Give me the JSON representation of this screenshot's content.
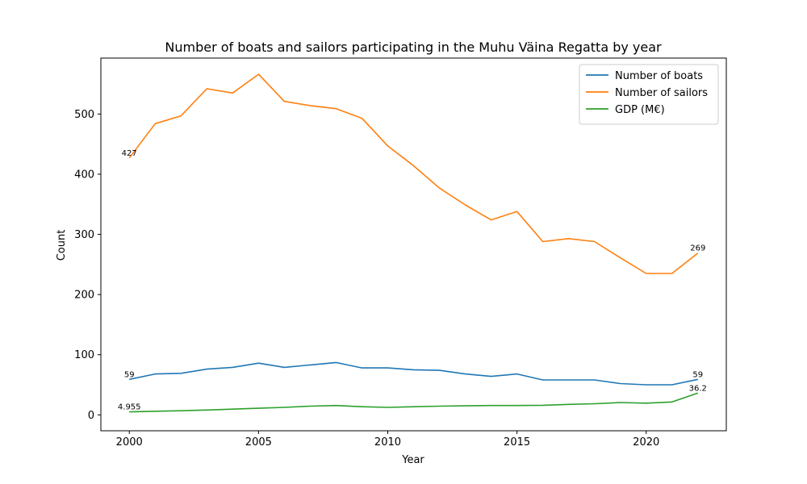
{
  "chart_data": {
    "type": "line",
    "title": "Number of boats and sailors participating in the Muhu Väina Regatta by year",
    "xlabel": "Year",
    "ylabel": "Count",
    "x": [
      2000,
      2001,
      2002,
      2003,
      2004,
      2005,
      2006,
      2007,
      2008,
      2009,
      2010,
      2011,
      2012,
      2013,
      2014,
      2015,
      2016,
      2017,
      2018,
      2019,
      2020,
      2021,
      2022
    ],
    "xlim": [
      1998.9,
      2023.1
    ],
    "ylim": [
      -26.4,
      593
    ],
    "xticks": [
      2000,
      2005,
      2010,
      2015,
      2020
    ],
    "yticks": [
      0,
      100,
      200,
      300,
      400,
      500
    ],
    "grid": false,
    "legend_position": "top-right",
    "series": [
      {
        "name": "Number of boats",
        "color": "#1f77b4",
        "values": [
          59,
          68,
          69,
          76,
          79,
          86,
          79,
          83,
          87,
          78,
          78,
          75,
          74,
          68,
          64,
          68,
          58,
          58,
          58,
          52,
          50,
          50,
          59
        ]
      },
      {
        "name": "Number of sailors",
        "color": "#ff7f0e",
        "values": [
          427,
          484,
          497,
          542,
          535,
          566,
          521,
          514,
          509,
          493,
          447,
          414,
          377,
          349,
          324,
          338,
          288,
          293,
          288,
          261,
          235,
          235,
          269
        ]
      },
      {
        "name": "GDP (M€)",
        "color": "#2ca02c",
        "values": [
          4.955,
          6,
          6.8,
          8,
          9.5,
          11,
          12.5,
          14.5,
          15.5,
          13.5,
          12.5,
          13.5,
          14.5,
          15,
          15.5,
          15.5,
          16,
          17.5,
          18.5,
          20.5,
          19.5,
          21.5,
          36.2
        ]
      }
    ],
    "annotations": [
      {
        "series": 0,
        "x": 2000,
        "text": "59"
      },
      {
        "series": 0,
        "x": 2022,
        "text": "59"
      },
      {
        "series": 1,
        "x": 2000,
        "text": "427"
      },
      {
        "series": 1,
        "x": 2022,
        "text": "269"
      },
      {
        "series": 2,
        "x": 2000,
        "text": "4.955"
      },
      {
        "series": 2,
        "x": 2022,
        "text": "36.2"
      }
    ]
  }
}
